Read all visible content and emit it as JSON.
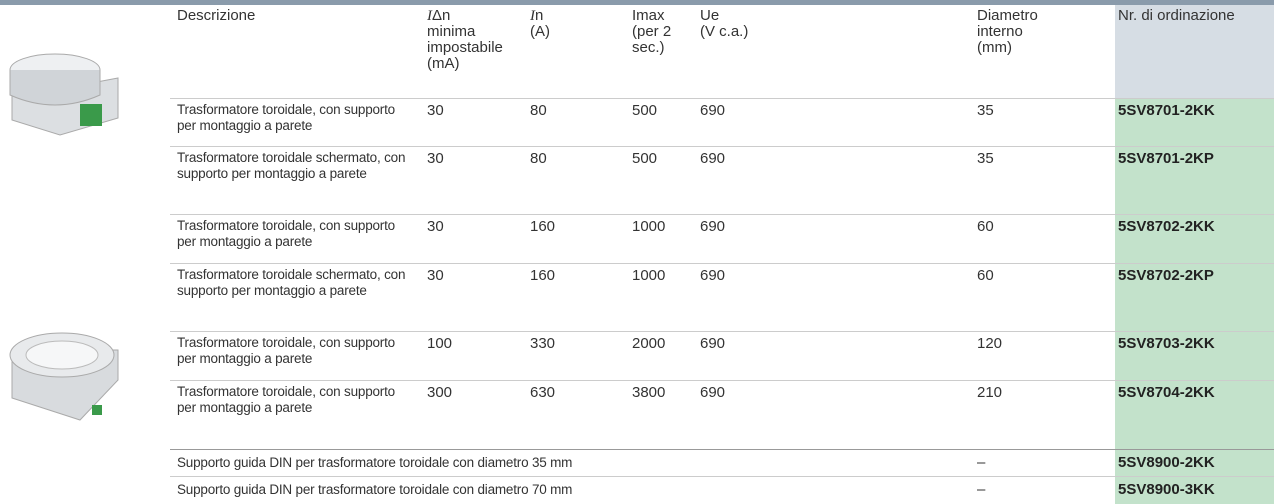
{
  "table": {
    "header": [
      {
        "lines": [
          "Descrizione"
        ]
      },
      {
        "symbol": "I",
        "lines": [
          "Δn",
          "minima",
          "impostabile",
          "(mA)"
        ]
      },
      {
        "symbol": "I",
        "lines": [
          "n",
          "(A)"
        ]
      },
      {
        "lines": [
          "Imax",
          "(per 2",
          "sec.)"
        ]
      },
      {
        "lines": [
          "Ue",
          "(V c.a.)"
        ]
      },
      {
        "lines": [
          "Diametro",
          "interno",
          "(mm)"
        ]
      },
      {
        "lines": [
          "Nr. di ordinazione"
        ]
      }
    ],
    "rows": [
      {
        "description": "Trasformatore toroidale, con supporto per montaggio a parete",
        "idn": 30,
        "in": 80,
        "imax": 500,
        "ue": 690,
        "diameter": 35,
        "code": "5SV8701-2KK"
      },
      {
        "description": "Trasformatore toroidale schermato, con supporto per montaggio a parete",
        "idn": 30,
        "in": 80,
        "imax": 500,
        "ue": 690,
        "diameter": 35,
        "code": "5SV8701-2KP"
      },
      {
        "description": "Trasformatore toroidale, con supporto per montaggio a parete",
        "idn": 30,
        "in": 160,
        "imax": 1000,
        "ue": 690,
        "diameter": 60,
        "code": "5SV8702-2KK"
      },
      {
        "description": "Trasformatore toroidale schermato, con supporto per montaggio a parete",
        "idn": 30,
        "in": 160,
        "imax": 1000,
        "ue": 690,
        "diameter": 60,
        "code": "5SV8702-2KP"
      },
      {
        "description": "Trasformatore toroidale, con supporto per montaggio a parete",
        "idn": 100,
        "in": 330,
        "imax": 2000,
        "ue": 690,
        "diameter": 120,
        "code": "5SV8703-2KK"
      },
      {
        "description": "Trasformatore toroidale, con supporto per montaggio a parete",
        "idn": 300,
        "in": 630,
        "imax": 3800,
        "ue": 690,
        "diameter": 210,
        "code": "5SV8704-2KK"
      }
    ],
    "accessories": [
      {
        "description": "Supporto guida DIN per trasformatore toroidale con diametro 35 mm",
        "diameter": "–",
        "code": "5SV8900-2KK"
      },
      {
        "description": "Supporto guida DIN per trasformatore toroidale con diametro 70 mm",
        "diameter": "–",
        "code": "5SV8900-3KK"
      }
    ]
  }
}
